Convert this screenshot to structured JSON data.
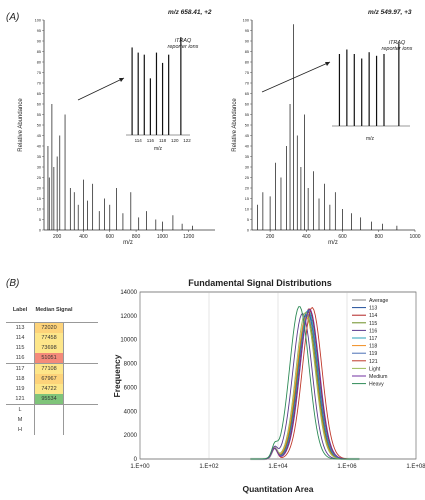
{
  "panel_a": {
    "label": "(A)",
    "left": {
      "header_text": "",
      "mz_title": "m/z 658.41, +2",
      "ylabel": "Relative Abundance",
      "xlabel": "m/z",
      "inset_label_line1": "iTRAQ",
      "inset_label_line2": "reporter ions",
      "inset_xlabel": "m/z"
    },
    "right": {
      "mz_title": "m/z 549.97, +3",
      "ylabel": "Relative Abundance",
      "xlabel": "m/z",
      "inset_label_line1": "iTRAQ",
      "inset_label_line2": "reporter ions",
      "inset_xlabel": "m/z"
    }
  },
  "panel_b": {
    "label": "(B)",
    "table": {
      "header_label": "Label",
      "header_signal": "Median Signal",
      "rows": [
        {
          "label": "113",
          "value": "72020",
          "color": "#fdd37a"
        },
        {
          "label": "114",
          "value": "77458",
          "color": "#fde68a"
        },
        {
          "label": "115",
          "value": "73698",
          "color": "#fde68a"
        },
        {
          "label": "116",
          "value": "51051",
          "color": "#f48a7a"
        },
        {
          "label": "117",
          "value": "77108",
          "color": "#fde68a"
        },
        {
          "label": "118",
          "value": "67967",
          "color": "#fdd37a"
        },
        {
          "label": "119",
          "value": "74722",
          "color": "#fde68a"
        },
        {
          "label": "121",
          "value": "95534",
          "color": "#7fc47a"
        },
        {
          "label": "L",
          "value": "",
          "color": "#ffffff"
        },
        {
          "label": "M",
          "value": "",
          "color": "#ffffff"
        },
        {
          "label": "H",
          "value": "",
          "color": "#ffffff"
        }
      ]
    }
  },
  "chart_data": [
    {
      "type": "bar",
      "title": "m/z 658.41, +2",
      "xlabel": "m/z",
      "ylabel": "Relative Abundance",
      "xlim": [
        100,
        1400
      ],
      "ylim": [
        0,
        100
      ],
      "x_ticks": [
        200,
        400,
        600,
        800,
        1000,
        1200
      ],
      "y_ticks": [
        0,
        5,
        10,
        15,
        20,
        25,
        30,
        35,
        40,
        45,
        50,
        55,
        60,
        65,
        70,
        75,
        80,
        85,
        90,
        95,
        100
      ],
      "peaks": [
        {
          "x": 130,
          "y": 40
        },
        {
          "x": 140,
          "y": 25
        },
        {
          "x": 160,
          "y": 60
        },
        {
          "x": 175,
          "y": 30
        },
        {
          "x": 200,
          "y": 35
        },
        {
          "x": 220,
          "y": 45
        },
        {
          "x": 260,
          "y": 55
        },
        {
          "x": 300,
          "y": 20
        },
        {
          "x": 330,
          "y": 18
        },
        {
          "x": 360,
          "y": 12
        },
        {
          "x": 400,
          "y": 24
        },
        {
          "x": 430,
          "y": 14
        },
        {
          "x": 470,
          "y": 22
        },
        {
          "x": 520,
          "y": 9
        },
        {
          "x": 560,
          "y": 15
        },
        {
          "x": 600,
          "y": 12
        },
        {
          "x": 650,
          "y": 20
        },
        {
          "x": 700,
          "y": 8
        },
        {
          "x": 760,
          "y": 18
        },
        {
          "x": 820,
          "y": 6
        },
        {
          "x": 880,
          "y": 9
        },
        {
          "x": 950,
          "y": 5
        },
        {
          "x": 1000,
          "y": 4
        },
        {
          "x": 1080,
          "y": 7
        },
        {
          "x": 1150,
          "y": 3
        },
        {
          "x": 1230,
          "y": 2
        }
      ],
      "inset": {
        "x_ticks": [
          114,
          116,
          118,
          120,
          122
        ],
        "xlabel": "m/z",
        "peaks": [
          {
            "x": 113,
            "y": 85
          },
          {
            "x": 114,
            "y": 80
          },
          {
            "x": 115,
            "y": 78
          },
          {
            "x": 116,
            "y": 55
          },
          {
            "x": 117,
            "y": 80
          },
          {
            "x": 118,
            "y": 70
          },
          {
            "x": 119,
            "y": 78
          },
          {
            "x": 121,
            "y": 95
          }
        ]
      }
    },
    {
      "type": "bar",
      "title": "m/z 549.97, +3",
      "xlabel": "m/z",
      "ylabel": "Relative Abundance",
      "xlim": [
        100,
        1000
      ],
      "ylim": [
        0,
        100
      ],
      "x_ticks": [
        200,
        400,
        600,
        800,
        1000
      ],
      "y_ticks": [
        0,
        5,
        10,
        15,
        20,
        25,
        30,
        35,
        40,
        45,
        50,
        55,
        60,
        65,
        70,
        75,
        80,
        85,
        90,
        95,
        100
      ],
      "peaks": [
        {
          "x": 130,
          "y": 12
        },
        {
          "x": 160,
          "y": 18
        },
        {
          "x": 200,
          "y": 16
        },
        {
          "x": 230,
          "y": 32
        },
        {
          "x": 260,
          "y": 25
        },
        {
          "x": 290,
          "y": 40
        },
        {
          "x": 310,
          "y": 60
        },
        {
          "x": 330,
          "y": 98
        },
        {
          "x": 350,
          "y": 45
        },
        {
          "x": 370,
          "y": 30
        },
        {
          "x": 390,
          "y": 55
        },
        {
          "x": 410,
          "y": 20
        },
        {
          "x": 440,
          "y": 28
        },
        {
          "x": 470,
          "y": 15
        },
        {
          "x": 500,
          "y": 22
        },
        {
          "x": 530,
          "y": 12
        },
        {
          "x": 560,
          "y": 18
        },
        {
          "x": 600,
          "y": 10
        },
        {
          "x": 650,
          "y": 8
        },
        {
          "x": 700,
          "y": 6
        },
        {
          "x": 760,
          "y": 4
        },
        {
          "x": 820,
          "y": 3
        },
        {
          "x": 900,
          "y": 2
        }
      ],
      "inset": {
        "x_ticks": [],
        "xlabel": "m/z",
        "peaks": [
          {
            "x": 113,
            "y": 80
          },
          {
            "x": 114,
            "y": 85
          },
          {
            "x": 115,
            "y": 80
          },
          {
            "x": 116,
            "y": 75
          },
          {
            "x": 117,
            "y": 82
          },
          {
            "x": 118,
            "y": 78
          },
          {
            "x": 119,
            "y": 80
          },
          {
            "x": 121,
            "y": 92
          }
        ]
      }
    },
    {
      "type": "line",
      "title": "Fundamental Signal Distributions",
      "xlabel": "Quantitation Area",
      "ylabel": "Frequency",
      "x_scale": "log",
      "xlim": [
        1,
        100000000
      ],
      "ylim": [
        0,
        14000
      ],
      "x_ticks": [
        "1.E+00",
        "1.E+02",
        "1.E+04",
        "1.E+06",
        "1.E+08"
      ],
      "y_ticks": [
        0,
        2000,
        4000,
        6000,
        8000,
        10000,
        12000,
        14000
      ],
      "legend_position": "top-right",
      "series": [
        {
          "name": "Average",
          "color": "#c0c0c0",
          "center_log": 4.85,
          "peak": 12300
        },
        {
          "name": "113",
          "color": "#1f4e9a",
          "center_log": 4.86,
          "peak": 12400
        },
        {
          "name": "114",
          "color": "#b22222",
          "center_log": 4.9,
          "peak": 12600
        },
        {
          "name": "115",
          "color": "#6b8e23",
          "center_log": 4.84,
          "peak": 12000
        },
        {
          "name": "116",
          "color": "#5b3a8e",
          "center_log": 4.71,
          "peak": 12200
        },
        {
          "name": "117",
          "color": "#2aa0b8",
          "center_log": 4.88,
          "peak": 12500
        },
        {
          "name": "118",
          "color": "#f08c20",
          "center_log": 4.82,
          "peak": 11900
        },
        {
          "name": "119",
          "color": "#4a6fb5",
          "center_log": 4.87,
          "peak": 12100
        },
        {
          "name": "121",
          "color": "#c0392b",
          "center_log": 4.99,
          "peak": 12700
        },
        {
          "name": "Light",
          "color": "#9bbb59",
          "center_log": 4.8,
          "peak": 12300
        },
        {
          "name": "Medium",
          "color": "#7030a0",
          "center_log": 4.92,
          "peak": 12550
        },
        {
          "name": "Heavy",
          "color": "#2e8b57",
          "center_log": 4.62,
          "peak": 12800
        }
      ]
    }
  ]
}
